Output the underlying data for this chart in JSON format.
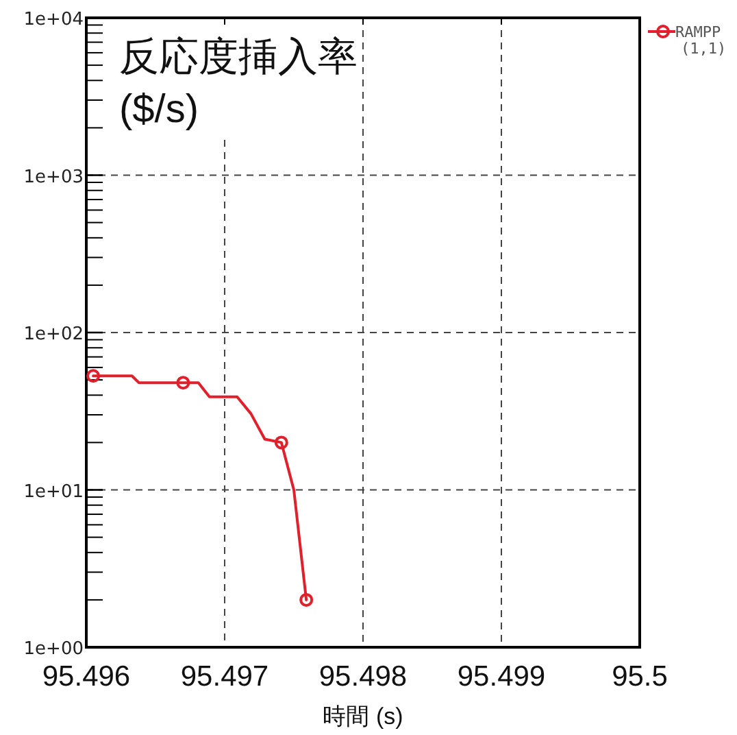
{
  "chart_data": {
    "type": "line",
    "title": "反応度挿入率\n($/s)",
    "xlabel": "時間 (s)",
    "xlim": [
      95.496,
      95.5
    ],
    "xticks": [
      95.496,
      95.497,
      95.498,
      95.499,
      95.5
    ],
    "ylim": [
      1,
      10000
    ],
    "yticks": [
      {
        "value": 1,
        "label": "1e+00"
      },
      {
        "value": 10,
        "label": "1e+01"
      },
      {
        "value": 100,
        "label": "1e+02"
      },
      {
        "value": 1000,
        "label": "1e+03"
      },
      {
        "value": 10000,
        "label": "1e+04"
      }
    ],
    "log": "y",
    "grid": true,
    "legend": "top right",
    "line_style": "solid",
    "series": [
      {
        "name": "RAMPP\n(1,1)",
        "color": "#e0202a",
        "x": [
          95.49605,
          95.49633,
          95.49638,
          95.4967,
          95.49681,
          95.49689,
          95.49709,
          95.49719,
          95.49729,
          95.49741,
          95.4975,
          95.49759
        ],
        "values": [
          53,
          53,
          48,
          48,
          48,
          39,
          39,
          30.5,
          21,
          20,
          10,
          2
        ]
      },
      {
        "type": "scatter",
        "marker": "circle",
        "color": "#e0202a",
        "x": [
          95.49605,
          95.4967,
          95.49741,
          95.49759
        ],
        "values": [
          53,
          48,
          20,
          2
        ]
      }
    ]
  }
}
